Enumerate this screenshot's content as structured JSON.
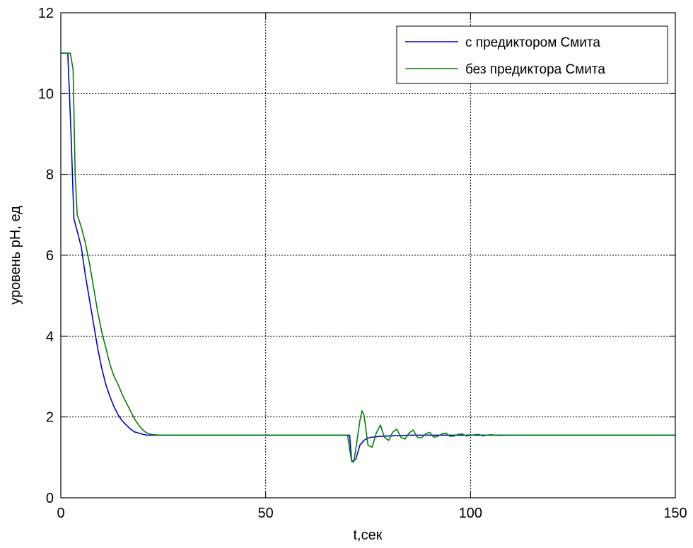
{
  "chart_data": {
    "type": "line",
    "title": "",
    "xlabel": "t,сек",
    "ylabel": "уровень pH, ед",
    "xlim": [
      0,
      150
    ],
    "ylim": [
      0,
      12
    ],
    "xticks": [
      0,
      50,
      100,
      150
    ],
    "yticks": [
      0,
      2,
      4,
      6,
      8,
      10,
      12
    ],
    "grid": true,
    "legend": "top-right",
    "series": [
      {
        "name": "с предиктором Смита",
        "color": "#0000cc",
        "points": [
          [
            0,
            11
          ],
          [
            1.7,
            11
          ],
          [
            2.5,
            9
          ],
          [
            3.2,
            6.9
          ],
          [
            4,
            6.6
          ],
          [
            5,
            6.2
          ],
          [
            6,
            5.5
          ],
          [
            7,
            4.9
          ],
          [
            8,
            4.3
          ],
          [
            9,
            3.7
          ],
          [
            10,
            3.2
          ],
          [
            11,
            2.8
          ],
          [
            12,
            2.5
          ],
          [
            13,
            2.25
          ],
          [
            14,
            2.05
          ],
          [
            15,
            1.9
          ],
          [
            16,
            1.8
          ],
          [
            17,
            1.7
          ],
          [
            18,
            1.63
          ],
          [
            19,
            1.6
          ],
          [
            20,
            1.57
          ],
          [
            21,
            1.55
          ],
          [
            22,
            1.55
          ],
          [
            70.5,
            1.55
          ],
          [
            71,
            0.9
          ],
          [
            72,
            0.95
          ],
          [
            73,
            1.3
          ],
          [
            74,
            1.42
          ],
          [
            75,
            1.48
          ],
          [
            76,
            1.5
          ],
          [
            78,
            1.52
          ],
          [
            80,
            1.53
          ],
          [
            85,
            1.55
          ],
          [
            150,
            1.55
          ]
        ]
      },
      {
        "name": "без предиктора Смита",
        "color": "#008000",
        "points": [
          [
            0,
            11
          ],
          [
            1.5,
            11
          ],
          [
            2.3,
            11
          ],
          [
            3,
            10.6
          ],
          [
            3.5,
            8
          ],
          [
            4,
            7
          ],
          [
            5,
            6.7
          ],
          [
            6,
            6.3
          ],
          [
            7,
            5.8
          ],
          [
            8,
            5.2
          ],
          [
            9,
            4.6
          ],
          [
            10,
            4.1
          ],
          [
            11,
            3.7
          ],
          [
            12,
            3.3
          ],
          [
            13,
            3
          ],
          [
            14,
            2.8
          ],
          [
            15,
            2.55
          ],
          [
            16,
            2.35
          ],
          [
            17,
            2.15
          ],
          [
            18,
            1.95
          ],
          [
            19,
            1.8
          ],
          [
            20,
            1.68
          ],
          [
            21,
            1.6
          ],
          [
            22,
            1.57
          ],
          [
            23,
            1.56
          ],
          [
            24,
            1.55
          ],
          [
            70,
            1.55
          ],
          [
            70.5,
            1.2
          ],
          [
            71,
            0.9
          ],
          [
            71.5,
            0.88
          ],
          [
            72,
            1.2
          ],
          [
            73,
            1.9
          ],
          [
            73.5,
            2.15
          ],
          [
            74,
            2.05
          ],
          [
            75,
            1.3
          ],
          [
            76,
            1.25
          ],
          [
            77,
            1.6
          ],
          [
            78,
            1.8
          ],
          [
            79,
            1.5
          ],
          [
            80,
            1.42
          ],
          [
            81,
            1.62
          ],
          [
            82,
            1.7
          ],
          [
            83,
            1.5
          ],
          [
            84,
            1.45
          ],
          [
            85,
            1.6
          ],
          [
            86,
            1.68
          ],
          [
            87,
            1.5
          ],
          [
            88,
            1.48
          ],
          [
            89,
            1.58
          ],
          [
            90,
            1.62
          ],
          [
            91,
            1.5
          ],
          [
            92,
            1.52
          ],
          [
            93,
            1.58
          ],
          [
            94,
            1.6
          ],
          [
            95,
            1.52
          ],
          [
            96,
            1.53
          ],
          [
            97,
            1.57
          ],
          [
            98,
            1.58
          ],
          [
            99,
            1.53
          ],
          [
            100,
            1.54
          ],
          [
            101,
            1.56
          ],
          [
            102,
            1.57
          ],
          [
            103,
            1.53
          ],
          [
            104,
            1.55
          ],
          [
            105,
            1.56
          ],
          [
            106,
            1.55
          ],
          [
            107,
            1.54
          ],
          [
            108,
            1.55
          ],
          [
            150,
            1.55
          ]
        ]
      }
    ]
  }
}
